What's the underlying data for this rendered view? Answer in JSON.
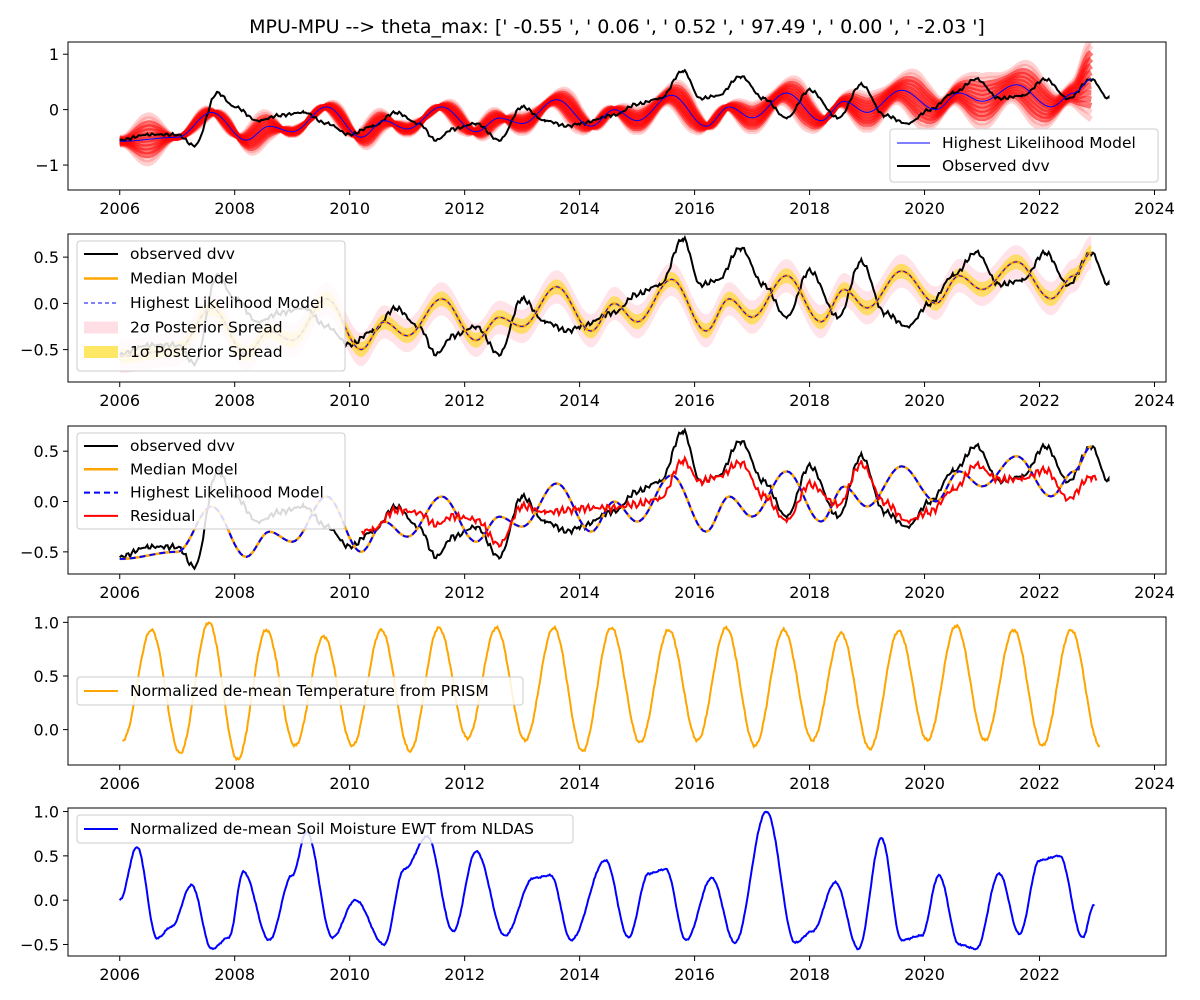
{
  "figure": {
    "title": "MPU-MPU --> theta_max: [' -0.55 ', ' 0.06 ', ' 0.52 ', ' 97.49 ', ' 0.00 ', ' -2.03 ']"
  },
  "chart_data": [
    {
      "type": "line",
      "panel": 1,
      "xlim": [
        2005.1,
        2024.2
      ],
      "ylim": [
        -1.45,
        1.22
      ],
      "xticks": [
        2006,
        2008,
        2010,
        2012,
        2014,
        2016,
        2018,
        2020,
        2022,
        2024
      ],
      "yticks": [
        -1,
        0,
        1
      ],
      "legend": {
        "placement": "lower-right",
        "entries": [
          "Highest Likelihood Model",
          "Observed dvv"
        ]
      },
      "series": [
        {
          "name": "Highest Likelihood Model",
          "color": "#0000ff",
          "style": "thin-solid",
          "x": [
            2006.0,
            2007.0,
            2007.6,
            2008.2,
            2008.6,
            2009.0,
            2009.6,
            2010.2,
            2010.6,
            2011.0,
            2011.6,
            2012.2,
            2012.6,
            2013.0,
            2013.6,
            2014.2,
            2014.6,
            2015.0,
            2015.6,
            2016.2,
            2016.6,
            2017.0,
            2017.6,
            2018.2,
            2018.6,
            2019.0,
            2019.6,
            2020.2,
            2020.6,
            2021.0,
            2021.6,
            2022.2,
            2022.6,
            2022.9
          ],
          "y": [
            -0.57,
            -0.5,
            -0.05,
            -0.55,
            -0.3,
            -0.4,
            0.05,
            -0.5,
            -0.2,
            -0.35,
            0.05,
            -0.4,
            -0.15,
            -0.25,
            0.18,
            -0.3,
            0.0,
            -0.2,
            0.26,
            -0.3,
            0.05,
            -0.15,
            0.3,
            -0.2,
            0.15,
            -0.05,
            0.35,
            0.0,
            0.3,
            0.15,
            0.45,
            0.05,
            0.3,
            0.55
          ]
        },
        {
          "name": "Observed dvv",
          "color": "#000000",
          "style": "solid",
          "x": [
            2006.0,
            2006.5,
            2007.0,
            2007.3,
            2007.7,
            2008.0,
            2008.4,
            2008.8,
            2009.2,
            2009.6,
            2010.0,
            2010.4,
            2010.8,
            2011.2,
            2011.5,
            2011.8,
            2012.2,
            2012.6,
            2013.0,
            2013.4,
            2013.8,
            2014.0,
            2014.6,
            2015.0,
            2015.4,
            2015.8,
            2016.1,
            2016.4,
            2016.8,
            2017.2,
            2017.6,
            2018.0,
            2018.5,
            2018.9,
            2019.3,
            2019.7,
            2020.1,
            2020.5,
            2020.9,
            2021.3,
            2021.7,
            2022.1,
            2022.5,
            2022.9,
            2023.2
          ],
          "y": [
            -0.55,
            -0.45,
            -0.45,
            -0.65,
            0.3,
            0.05,
            -0.2,
            -0.1,
            -0.05,
            -0.25,
            -0.45,
            -0.3,
            -0.05,
            -0.25,
            -0.55,
            -0.35,
            -0.25,
            -0.55,
            0.05,
            -0.2,
            -0.3,
            -0.25,
            -0.1,
            0.1,
            0.2,
            0.7,
            0.2,
            0.25,
            0.6,
            0.2,
            -0.15,
            0.35,
            -0.15,
            0.45,
            -0.1,
            -0.25,
            0.0,
            0.3,
            0.55,
            0.2,
            0.25,
            0.55,
            0.2,
            0.55,
            0.2
          ]
        }
      ],
      "ensemble": {
        "color": "#ff0000",
        "note": "posterior model ensemble (red band)"
      }
    },
    {
      "type": "line",
      "panel": 2,
      "xlim": [
        2005.1,
        2024.2
      ],
      "ylim": [
        -0.85,
        0.75
      ],
      "xticks": [
        2006,
        2008,
        2010,
        2012,
        2014,
        2016,
        2018,
        2020,
        2022,
        2024
      ],
      "yticks": [
        -0.5,
        0.0,
        0.5
      ],
      "legend": {
        "placement": "upper-left",
        "entries": [
          "observed dvv",
          "Median Model",
          "Highest Likelihood Model",
          "2$\\sigma$ Posterior Spread",
          "1$\\sigma$ Posterior Spread"
        ],
        "display": [
          "observed dvv",
          "Median Model",
          "Highest Likelihood Model",
          "2σ Posterior Spread",
          "1σ Posterior Spread"
        ]
      }
    },
    {
      "type": "line",
      "panel": 3,
      "xlim": [
        2005.1,
        2024.2
      ],
      "ylim": [
        -0.72,
        0.75
      ],
      "xticks": [
        2006,
        2008,
        2010,
        2012,
        2014,
        2016,
        2018,
        2020,
        2022,
        2024
      ],
      "yticks": [
        -0.5,
        0.0,
        0.5
      ],
      "legend": {
        "placement": "upper-left",
        "entries": [
          "observed dvv",
          "Median Model",
          "Highest Likelihood Model",
          "Residual"
        ]
      }
    },
    {
      "type": "line",
      "panel": 4,
      "xlim": [
        2005.1,
        2024.2
      ],
      "ylim": [
        -0.33,
        1.05
      ],
      "xticks": [
        2006,
        2008,
        2010,
        2012,
        2014,
        2016,
        2018,
        2020,
        2022,
        2024
      ],
      "yticks": [
        0.0,
        0.5,
        1.0
      ],
      "legend": {
        "placement": "center-left",
        "entries": [
          "Normalized de-mean Temperature from PRISM"
        ]
      },
      "series": [
        {
          "name": "Normalized de-mean Temperature from PRISM",
          "color": "#ffa500",
          "x_range": [
            2006.0,
            2023.2
          ],
          "annual_peaks": [
            0.93,
            1.0,
            0.93,
            0.87,
            0.93,
            0.95,
            0.95,
            0.95,
            0.95,
            0.93,
            0.95,
            0.93,
            0.9,
            0.92,
            0.97,
            0.93,
            0.93
          ],
          "annual_troughs": [
            -0.1,
            -0.22,
            -0.28,
            -0.15,
            -0.15,
            -0.2,
            -0.08,
            -0.1,
            -0.2,
            -0.12,
            -0.1,
            -0.15,
            -0.1,
            -0.18,
            -0.1,
            -0.1,
            -0.15,
            -0.15
          ]
        }
      ]
    },
    {
      "type": "line",
      "panel": 5,
      "xlim": [
        2005.1,
        2024.2
      ],
      "ylim": [
        -0.63,
        1.04
      ],
      "xticks": [
        2006,
        2008,
        2010,
        2012,
        2014,
        2016,
        2018,
        2020,
        2022
      ],
      "yticks": [
        -0.5,
        0.0,
        0.5,
        1.0
      ],
      "legend": {
        "placement": "upper-left",
        "entries": [
          "Normalized de-mean Soil Moisture EWT from NLDAS"
        ]
      },
      "series": [
        {
          "name": "Normalized de-mean Soil Moisture EWT from NLDAS",
          "color": "#0000ff",
          "x": [
            2006.0,
            2006.3,
            2006.65,
            2006.9,
            2007.25,
            2007.6,
            2007.9,
            2008.15,
            2008.6,
            2009.0,
            2009.25,
            2009.7,
            2010.1,
            2010.6,
            2010.95,
            2011.35,
            2011.8,
            2012.2,
            2012.7,
            2013.2,
            2013.5,
            2013.85,
            2014.45,
            2014.85,
            2015.2,
            2015.5,
            2015.85,
            2016.3,
            2016.7,
            2017.25,
            2017.75,
            2018.05,
            2018.45,
            2018.85,
            2019.25,
            2019.6,
            2019.95,
            2020.25,
            2020.6,
            2020.9,
            2021.3,
            2021.65,
            2022.0,
            2022.35,
            2022.75,
            2022.95
          ],
          "y": [
            0.0,
            0.6,
            -0.43,
            -0.3,
            0.17,
            -0.55,
            -0.42,
            0.32,
            -0.45,
            0.28,
            0.77,
            -0.42,
            0.0,
            -0.5,
            0.35,
            0.72,
            -0.35,
            0.55,
            -0.4,
            0.25,
            0.28,
            -0.45,
            0.45,
            -0.42,
            0.3,
            0.35,
            -0.45,
            0.25,
            -0.48,
            1.0,
            -0.48,
            -0.35,
            0.2,
            -0.55,
            0.7,
            -0.45,
            -0.4,
            0.28,
            -0.5,
            -0.55,
            0.3,
            -0.38,
            0.45,
            0.5,
            -0.42,
            -0.05
          ]
        }
      ]
    }
  ]
}
